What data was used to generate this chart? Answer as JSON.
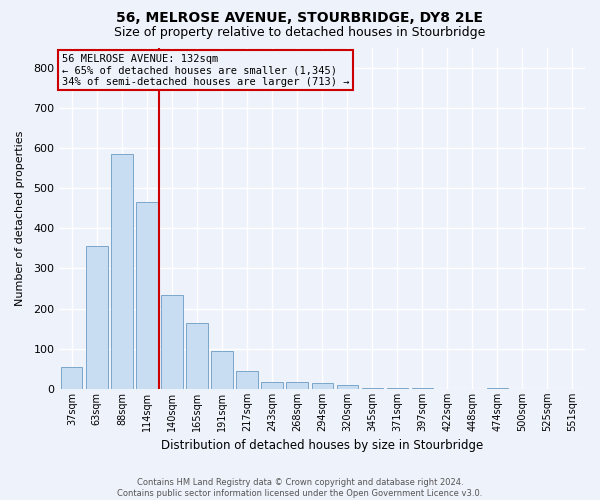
{
  "title1": "56, MELROSE AVENUE, STOURBRIDGE, DY8 2LE",
  "title2": "Size of property relative to detached houses in Stourbridge",
  "xlabel": "Distribution of detached houses by size in Stourbridge",
  "ylabel": "Number of detached properties",
  "categories": [
    "37sqm",
    "63sqm",
    "88sqm",
    "114sqm",
    "140sqm",
    "165sqm",
    "191sqm",
    "217sqm",
    "243sqm",
    "268sqm",
    "294sqm",
    "320sqm",
    "345sqm",
    "371sqm",
    "397sqm",
    "422sqm",
    "448sqm",
    "474sqm",
    "500sqm",
    "525sqm",
    "551sqm"
  ],
  "values": [
    55,
    355,
    585,
    465,
    235,
    165,
    95,
    45,
    18,
    18,
    15,
    10,
    3,
    3,
    2,
    0,
    0,
    2,
    0,
    0,
    0
  ],
  "bar_color": "#c9ddf2",
  "bar_edgecolor": "#7BA7CB",
  "vline_color": "#cc0000",
  "annotation_text": "56 MELROSE AVENUE: 132sqm\n← 65% of detached houses are smaller (1,345)\n34% of semi-detached houses are larger (713) →",
  "annotation_box_color": "#cc0000",
  "ylim": [
    0,
    850
  ],
  "yticks": [
    0,
    100,
    200,
    300,
    400,
    500,
    600,
    700,
    800
  ],
  "footer1": "Contains HM Land Registry data © Crown copyright and database right 2024.",
  "footer2": "Contains public sector information licensed under the Open Government Licence v3.0.",
  "background_color": "#eef2fa",
  "grid_color": "#ffffff",
  "title1_fontsize": 10,
  "title2_fontsize": 9,
  "bar_width": 0.85
}
